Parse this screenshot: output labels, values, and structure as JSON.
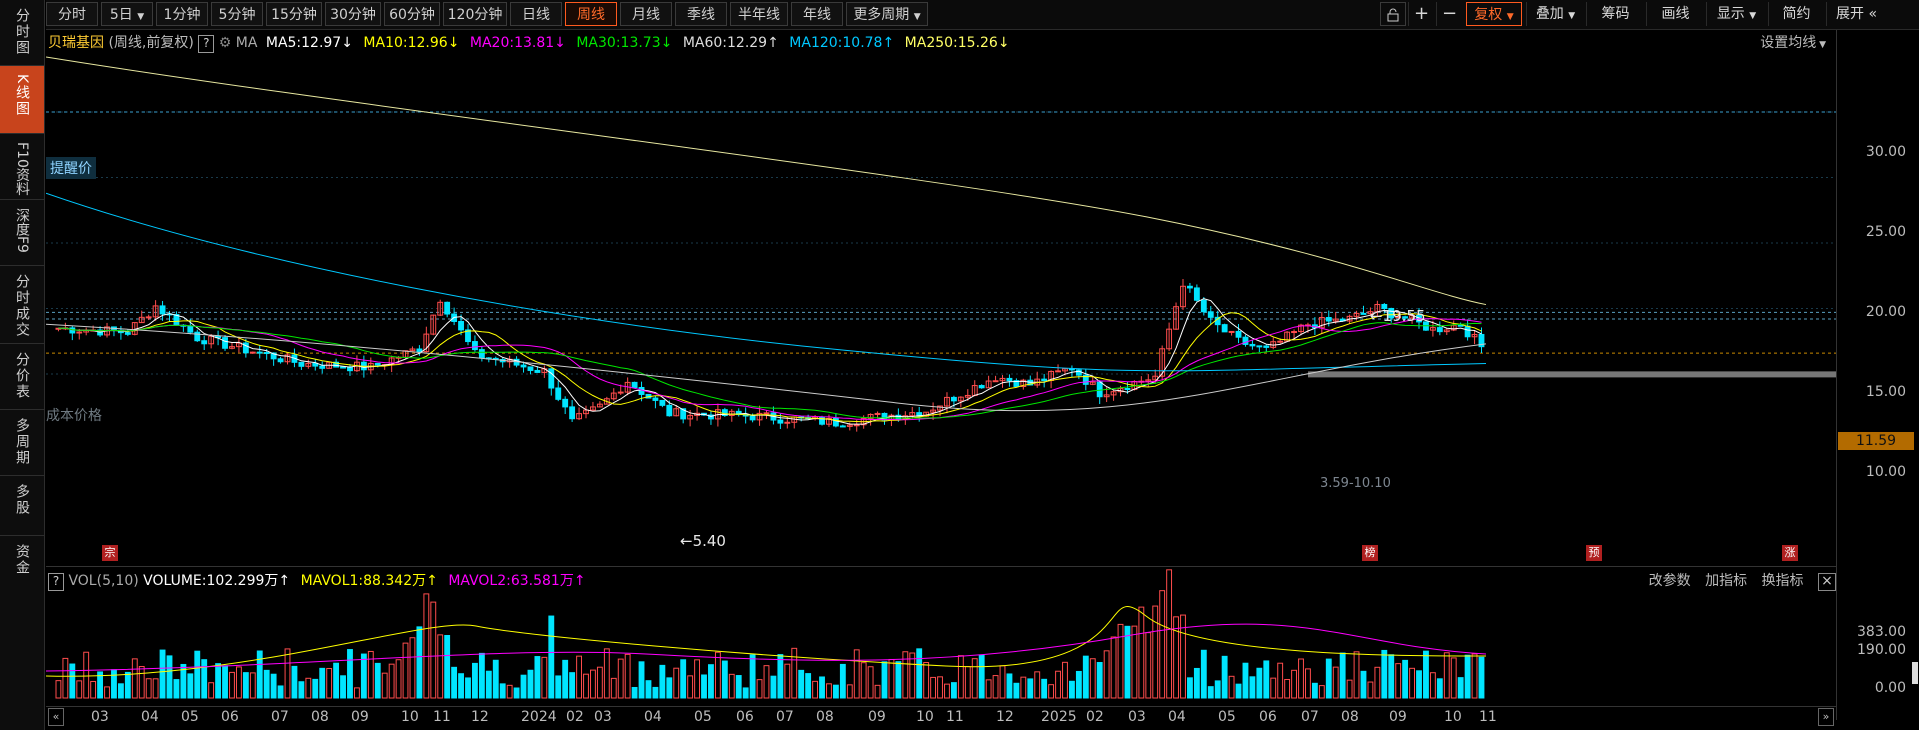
{
  "toolbar": {
    "periods": [
      "分时",
      "5日",
      "1分钟",
      "5分钟",
      "15分钟",
      "30分钟",
      "60分钟",
      "120分钟",
      "日线",
      "周线",
      "月线",
      "季线",
      "半年线",
      "年线",
      "更多周期"
    ],
    "active_period": "周线",
    "right_buttons": [
      "复权",
      "叠加",
      "筹码",
      "画线",
      "显示",
      "简约",
      "展开"
    ],
    "lock_icon": "lock-icon",
    "plus": "+",
    "minus": "−"
  },
  "leftnav": {
    "items": [
      "分时图",
      "K线图",
      "F10资料",
      "深度F9",
      "分时成交",
      "分价表",
      "多周期",
      "多股",
      "资金"
    ],
    "active": "K线图"
  },
  "main": {
    "stock_name": "贝瑞基因",
    "mode": "(周线,前复权)",
    "help": "?",
    "ma_label": "MA",
    "ma": [
      {
        "label": "MA5:12.97",
        "arrow": "↓",
        "color": "#ffffff"
      },
      {
        "label": "MA10:12.96",
        "arrow": "↓",
        "color": "#ffff00"
      },
      {
        "label": "MA20:13.81",
        "arrow": "↓",
        "color": "#ff00ff"
      },
      {
        "label": "MA30:13.73",
        "arrow": "↓",
        "color": "#00e600"
      },
      {
        "label": "MA60:12.29",
        "arrow": "↑",
        "color": "#dddddd"
      },
      {
        "label": "MA120:10.78",
        "arrow": "↑",
        "color": "#00c8ff"
      },
      {
        "label": "MA250:15.26",
        "arrow": "↓",
        "color": "#ffff66"
      }
    ],
    "settings_label": "设置均线",
    "alert_label": "提醒价",
    "cost_label": "成本价格",
    "high_annot": "19.55",
    "low_annot": "5.40",
    "range_annot": "3.59-10.10",
    "markers": [
      "宗",
      "榜",
      "预",
      "涨"
    ]
  },
  "price_axis": {
    "ticks": [
      "30.00",
      "25.00",
      "20.00",
      "15.00",
      "10.00"
    ],
    "current": "11.59"
  },
  "volume": {
    "help": "?",
    "label": "VOL(5,10)",
    "volume": "VOLUME:102.299万",
    "vol_arrow": "↑",
    "mavol1": "MAVOL1:88.342万",
    "mavol1_arrow": "↑",
    "mavol2": "MAVOL2:63.581万",
    "mavol2_arrow": "↑",
    "buttons": [
      "改参数",
      "加指标",
      "换指标"
    ],
    "close": "×",
    "ticks": [
      "383.00",
      "190.00",
      "0.00"
    ]
  },
  "x_axis": [
    "03",
    "04",
    "05",
    "06",
    "07",
    "08",
    "09",
    "10",
    "11",
    "12",
    "2024",
    "02",
    "03",
    "04",
    "05",
    "06",
    "07",
    "08",
    "09",
    "10",
    "11",
    "12",
    "2025",
    "02",
    "03",
    "04",
    "05",
    "06",
    "07",
    "08",
    "09",
    "10",
    "11"
  ],
  "colors": {
    "up": "#ff4d4d",
    "down": "#00e5ff",
    "accent": "#ff5a1f"
  }
}
